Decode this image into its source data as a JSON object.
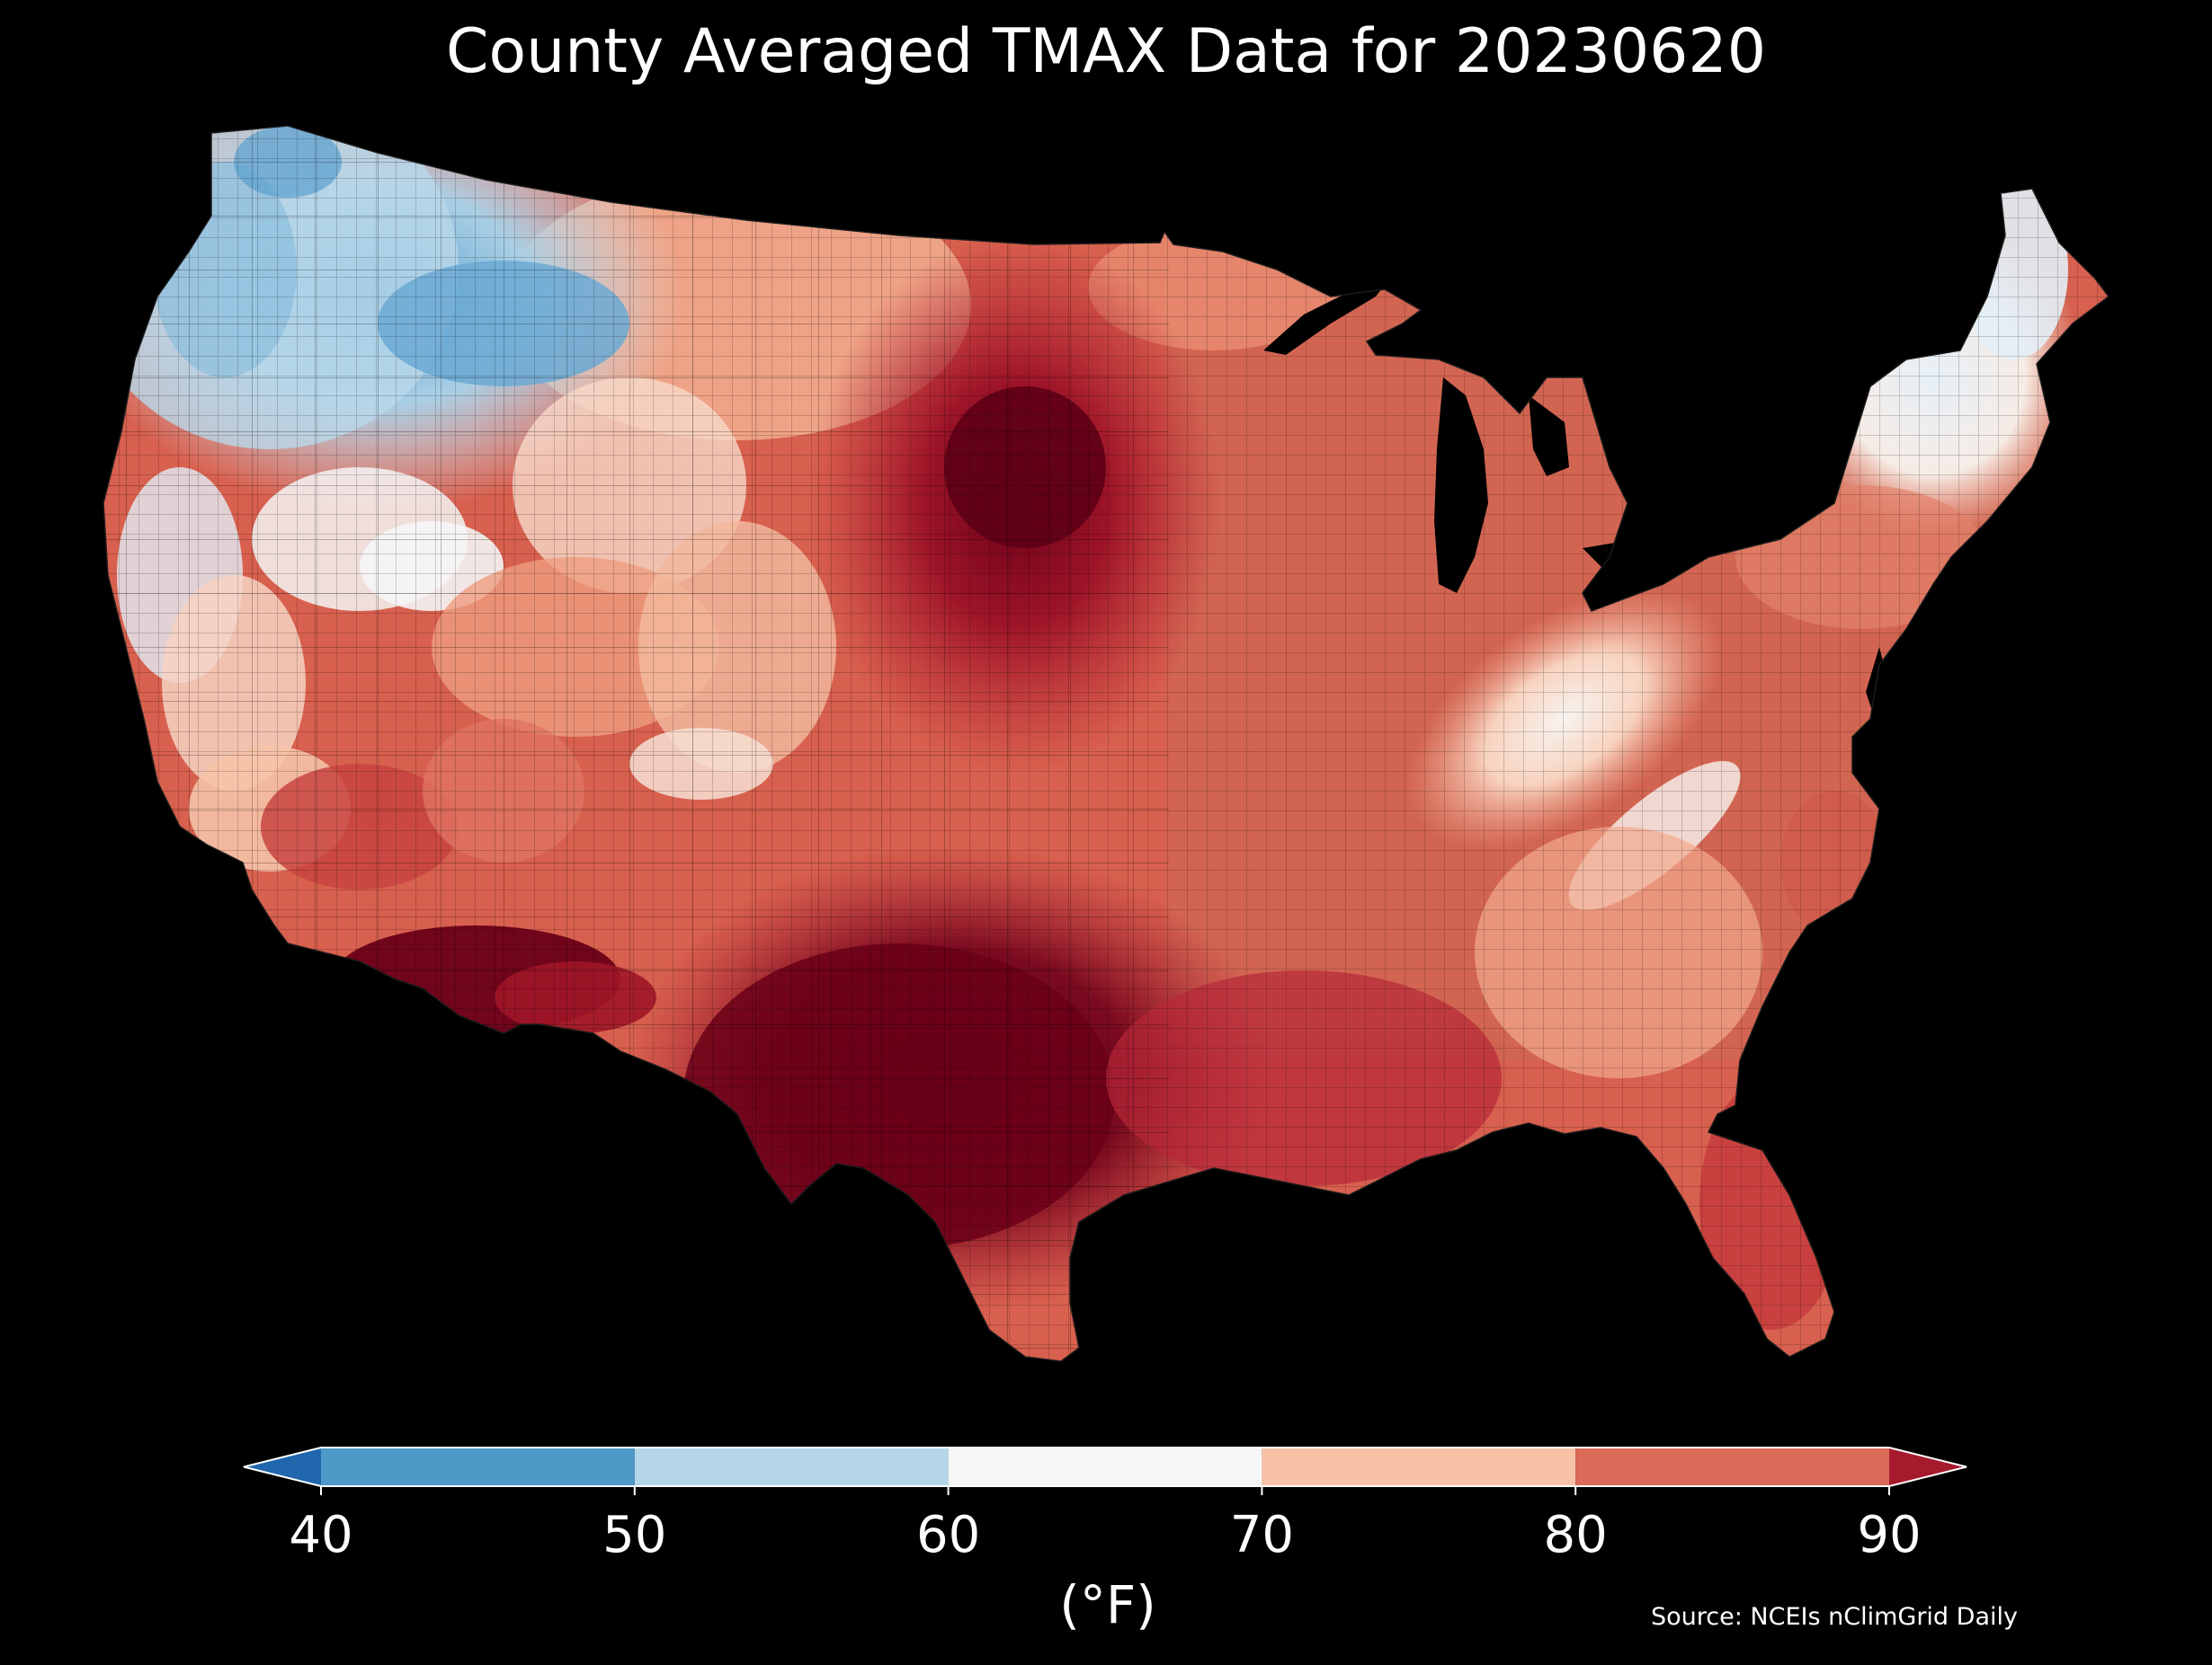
{
  "title": "County Averaged TMAX Data for 20230620",
  "colorbar": {
    "unit_label": "(°F)",
    "ticks": [
      "40",
      "50",
      "60",
      "70",
      "80",
      "90"
    ],
    "bins": [
      {
        "from": 40,
        "to": 50,
        "color": "#4d9ac8"
      },
      {
        "from": 50,
        "to": 60,
        "color": "#b5d6e9"
      },
      {
        "from": 60,
        "to": 70,
        "color": "#f6f6f6"
      },
      {
        "from": 70,
        "to": 80,
        "color": "#f8c2a7"
      },
      {
        "from": 80,
        "to": 90,
        "color": "#dc6a58"
      }
    ],
    "under_color": "#2166ac",
    "over_color": "#a51a2d",
    "extend": "both"
  },
  "source": "Source: NCEIs nClimGrid Daily",
  "map": {
    "type": "choropleth",
    "region": "Contiguous United States",
    "units": "counties",
    "background": "#000000",
    "colors": {
      "cold": "#5b9fcf",
      "cool": "#a9cfe5",
      "mild": "#f4f4f4",
      "warm": "#f5b596",
      "hot": "#d8604e",
      "very_hot": "#b41f2e",
      "extreme": "#6b0018"
    }
  }
}
